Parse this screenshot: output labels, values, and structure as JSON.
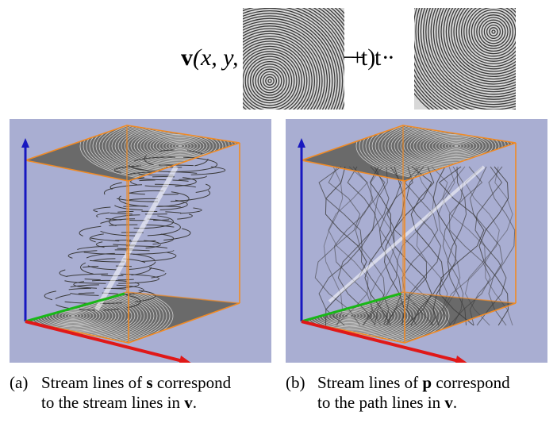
{
  "equation": {
    "lhs_vec": "v",
    "lhs_args": "(x, y, t)",
    "eq": "=",
    "coef1": "(1 − t) ·",
    "plus": "+",
    "coef2": "t ·"
  },
  "panels": [
    {
      "id": "a",
      "label": "(a)",
      "caption_pre": "Stream lines of ",
      "caption_sym": "s",
      "caption_post": " correspond",
      "caption_line2_pre": "to the stream lines in ",
      "caption_line2_sym": "v",
      "caption_line2_post": "."
    },
    {
      "id": "b",
      "label": "(b)",
      "caption_pre": "Stream lines of ",
      "caption_sym": "p",
      "caption_post": " correspond",
      "caption_line2_pre": "to the path lines in ",
      "caption_line2_sym": "v",
      "caption_line2_post": "."
    }
  ],
  "colors": {
    "background_panel": "#a9aed2",
    "box_edge": "#f08a24",
    "axis_x": "#e01818",
    "axis_y": "#18b818",
    "axis_z": "#1818c0",
    "flow_gray": "#5a5a5a"
  }
}
